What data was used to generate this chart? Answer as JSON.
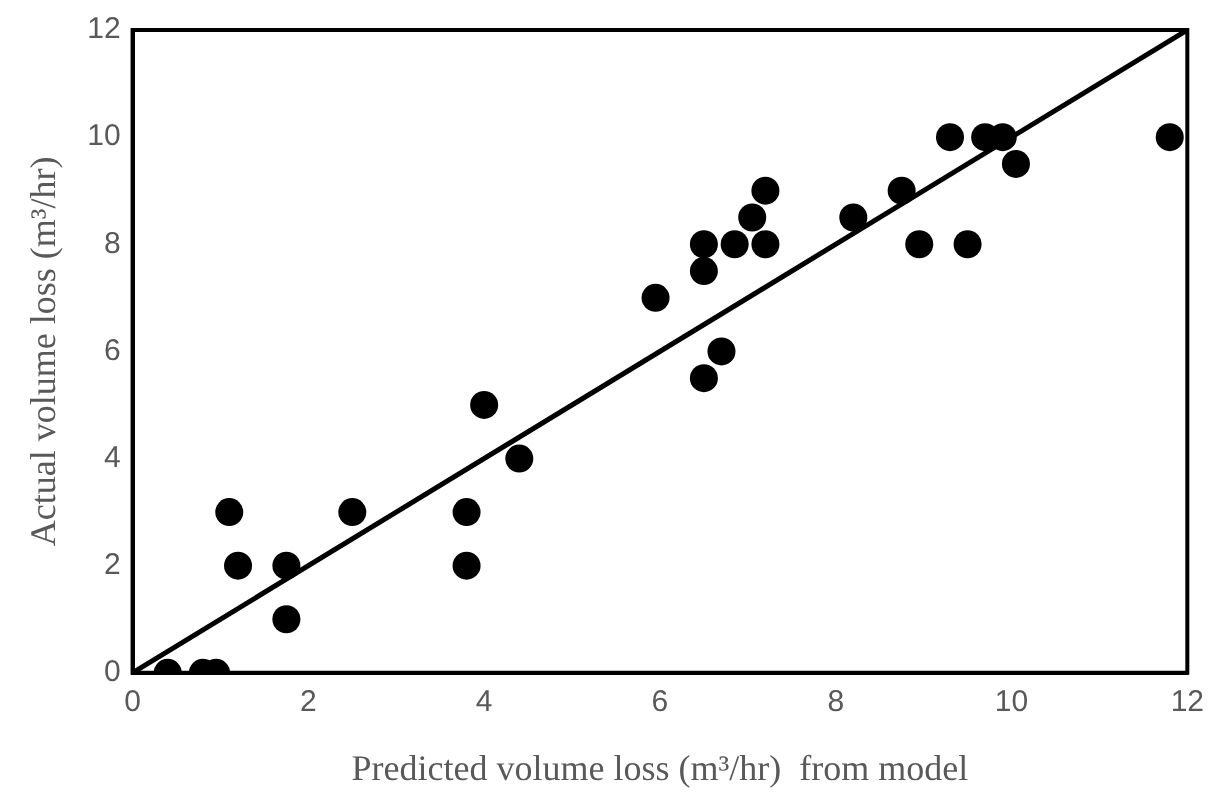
{
  "chart_data": {
    "type": "scatter",
    "xlabel": "Predicted volume loss (m³/hr)  from model",
    "ylabel": "Actual volume loss (m³/hr)",
    "xlim": [
      0,
      12
    ],
    "ylim": [
      0,
      12
    ],
    "xticks": [
      0,
      2,
      4,
      6,
      8,
      10,
      12
    ],
    "yticks": [
      0,
      2,
      4,
      6,
      8,
      10,
      12
    ],
    "grid": false,
    "legend": false,
    "marker": "circle",
    "series": [
      {
        "type": "scatter",
        "color": "#000000",
        "x": [
          0.4,
          0.8,
          0.95,
          1.1,
          1.2,
          1.75,
          1.75,
          2.5,
          3.8,
          3.8,
          4.0,
          4.4,
          5.95,
          6.5,
          6.5,
          6.5,
          6.7,
          6.85,
          7.05,
          7.2,
          7.2,
          8.2,
          8.75,
          8.95,
          9.3,
          9.5,
          9.7,
          9.9,
          10.05,
          11.8
        ],
        "values": [
          0,
          0,
          0,
          3,
          2,
          2,
          1,
          3,
          3,
          2,
          5,
          4,
          7,
          8,
          7.5,
          5.5,
          6,
          8,
          8.5,
          9,
          8,
          8.5,
          9,
          8,
          10,
          8,
          10,
          10,
          9.5,
          10
        ]
      },
      {
        "type": "line",
        "color": "#000000",
        "x": [
          0,
          12
        ],
        "values": [
          0,
          12
        ],
        "marker": "none"
      }
    ]
  }
}
